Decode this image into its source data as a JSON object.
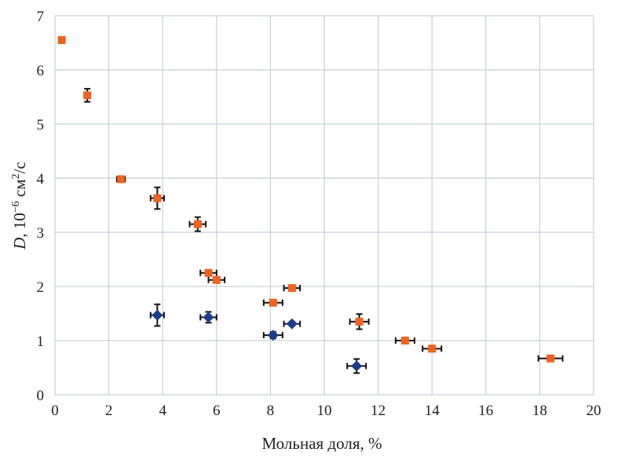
{
  "chart_data": {
    "type": "scatter",
    "xlabel": "Мольная доля, %",
    "ylabel_italic": "D",
    "ylabel_rest": ", 10",
    "ylabel_exp": "−6",
    "ylabel_unit": " см",
    "ylabel_unit_exp": "2",
    "ylabel_tail": "/с",
    "xlim": [
      0,
      20
    ],
    "ylim": [
      0,
      7
    ],
    "xticks": [
      "0",
      "2",
      "4",
      "6",
      "8",
      "10",
      "12",
      "14",
      "16",
      "18",
      "20"
    ],
    "yticks": [
      "0",
      "1",
      "2",
      "3",
      "4",
      "5",
      "6",
      "7"
    ],
    "grid": true,
    "legend": "none",
    "series": [
      {
        "marker": "square",
        "color": "#f0621e",
        "points": [
          {
            "x": 0.25,
            "y": 6.55,
            "xerr": 0,
            "yerr": 0
          },
          {
            "x": 1.2,
            "y": 5.53,
            "xerr": 0.05,
            "yerr": 0.12
          },
          {
            "x": 2.45,
            "y": 3.98,
            "xerr": 0.15,
            "yerr": 0.03
          },
          {
            "x": 3.8,
            "y": 3.63,
            "xerr": 0.25,
            "yerr": 0.2
          },
          {
            "x": 5.3,
            "y": 3.15,
            "xerr": 0.3,
            "yerr": 0.13
          },
          {
            "x": 5.7,
            "y": 2.25,
            "xerr": 0.3,
            "yerr": 0.03
          },
          {
            "x": 6.0,
            "y": 2.12,
            "xerr": 0.3,
            "yerr": 0.03
          },
          {
            "x": 8.1,
            "y": 1.7,
            "xerr": 0.35,
            "yerr": 0.03
          },
          {
            "x": 8.8,
            "y": 1.97,
            "xerr": 0.3,
            "yerr": 0.03
          },
          {
            "x": 11.3,
            "y": 1.35,
            "xerr": 0.35,
            "yerr": 0.14
          },
          {
            "x": 13.0,
            "y": 1.0,
            "xerr": 0.35,
            "yerr": 0.03
          },
          {
            "x": 14.0,
            "y": 0.85,
            "xerr": 0.35,
            "yerr": 0.03
          },
          {
            "x": 18.4,
            "y": 0.67,
            "xerr": 0.45,
            "yerr": 0.03
          }
        ]
      },
      {
        "marker": "diamond",
        "color": "#1b3d8c",
        "points": [
          {
            "x": 3.8,
            "y": 1.47,
            "xerr": 0.25,
            "yerr": 0.2
          },
          {
            "x": 5.7,
            "y": 1.43,
            "xerr": 0.3,
            "yerr": 0.1
          },
          {
            "x": 8.1,
            "y": 1.1,
            "xerr": 0.35,
            "yerr": 0.06
          },
          {
            "x": 8.8,
            "y": 1.31,
            "xerr": 0.3,
            "yerr": 0.04
          },
          {
            "x": 11.2,
            "y": 0.53,
            "xerr": 0.35,
            "yerr": 0.13
          }
        ]
      }
    ]
  }
}
